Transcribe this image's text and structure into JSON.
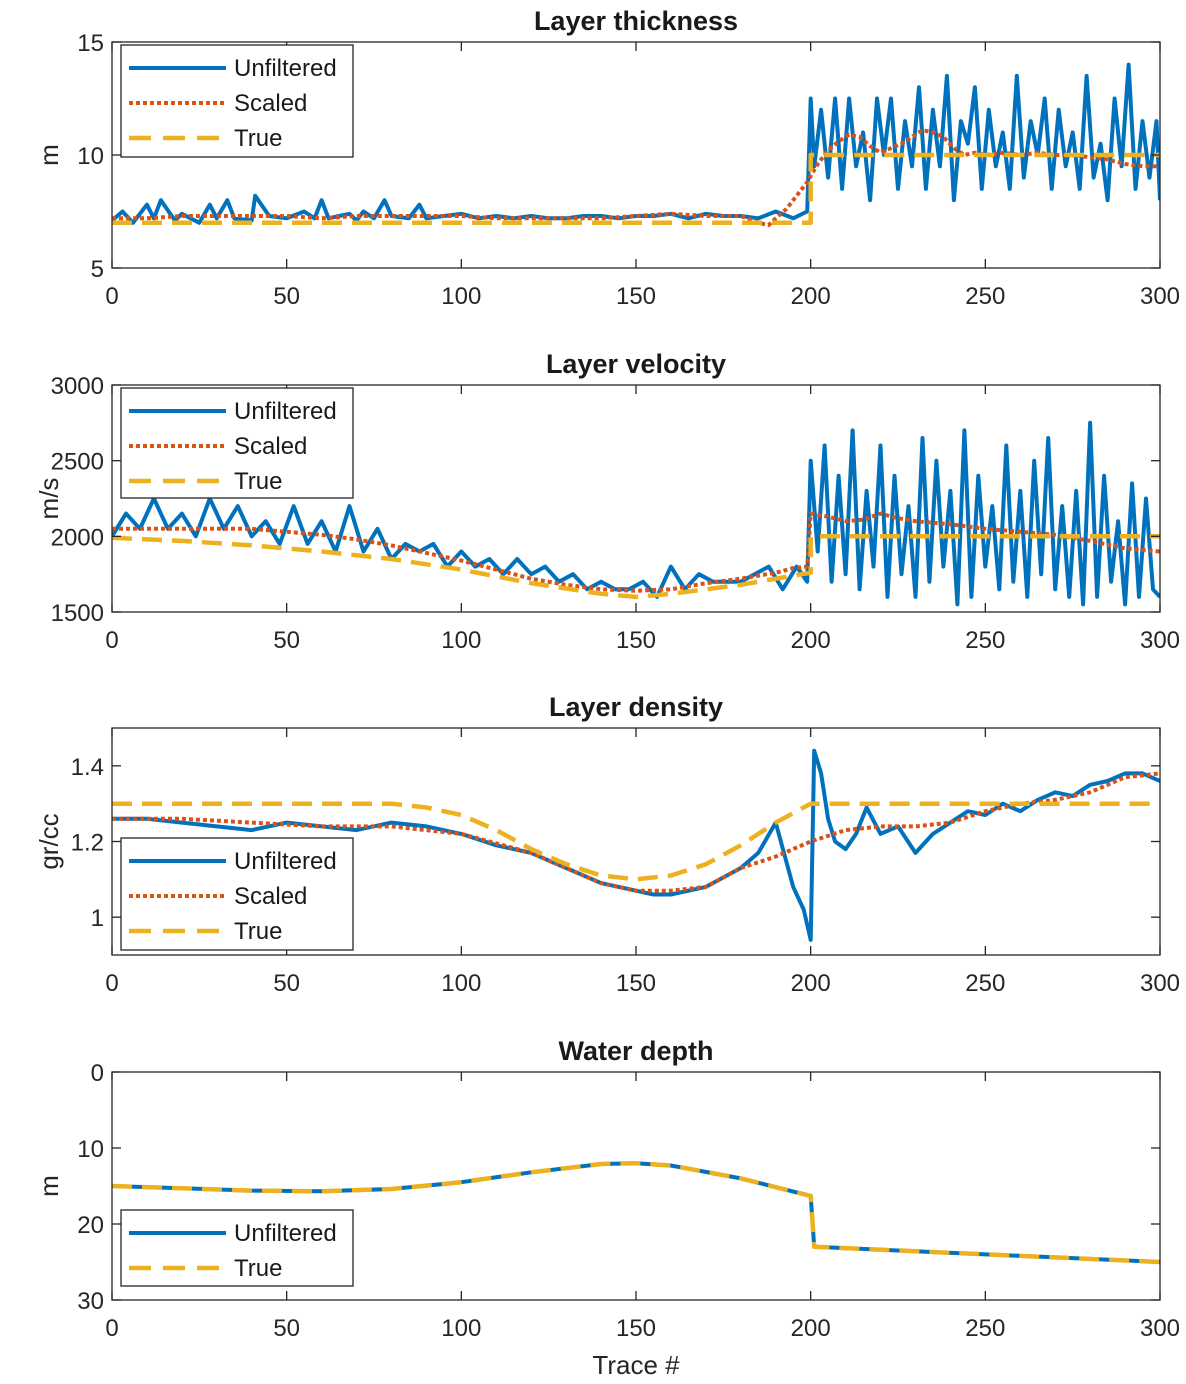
{
  "colors": {
    "unfiltered": "#0072BD",
    "scaled": "#D95319",
    "true": "#EDB120",
    "axis": "#262626",
    "background": "#ffffff"
  },
  "chart_data": [
    {
      "type": "line",
      "title": "Layer thickness",
      "ylabel": "m",
      "xlabel": "",
      "xlim": [
        0,
        300
      ],
      "ylim": [
        5,
        15
      ],
      "y_reversed": false,
      "xticks": [
        0,
        50,
        100,
        150,
        200,
        250,
        300
      ],
      "yticks": [
        5,
        10,
        15
      ],
      "legend_position": "top-left",
      "series": [
        {
          "name": "Unfiltered",
          "style": "solid",
          "x": [
            0,
            3,
            6,
            10,
            12,
            14,
            18,
            20,
            25,
            28,
            30,
            33,
            35,
            40,
            41,
            45,
            50,
            55,
            58,
            60,
            62,
            65,
            68,
            70,
            72,
            75,
            78,
            80,
            85,
            88,
            90,
            95,
            100,
            105,
            110,
            115,
            120,
            125,
            130,
            135,
            140,
            145,
            150,
            155,
            160,
            165,
            170,
            175,
            180,
            185,
            190,
            195,
            199,
            200,
            201,
            203,
            205,
            207,
            209,
            211,
            213,
            215,
            217,
            219,
            221,
            223,
            225,
            227,
            229,
            231,
            233,
            235,
            237,
            239,
            241,
            243,
            245,
            247,
            249,
            251,
            253,
            255,
            257,
            259,
            261,
            263,
            265,
            267,
            269,
            271,
            273,
            275,
            277,
            279,
            281,
            283,
            285,
            287,
            289,
            291,
            293,
            295,
            297,
            299,
            300
          ],
          "y": [
            7.1,
            7.5,
            7.0,
            7.8,
            7.2,
            8.0,
            7.1,
            7.4,
            7.0,
            7.8,
            7.2,
            8.0,
            7.2,
            7.1,
            8.2,
            7.3,
            7.2,
            7.5,
            7.2,
            8.0,
            7.2,
            7.3,
            7.4,
            7.1,
            7.5,
            7.2,
            8.0,
            7.3,
            7.2,
            7.8,
            7.2,
            7.3,
            7.4,
            7.2,
            7.3,
            7.2,
            7.3,
            7.2,
            7.2,
            7.3,
            7.3,
            7.2,
            7.3,
            7.3,
            7.4,
            7.2,
            7.4,
            7.3,
            7.3,
            7.2,
            7.5,
            7.2,
            7.5,
            12.5,
            9.5,
            12.0,
            9.0,
            12.5,
            8.5,
            12.5,
            9.5,
            11.0,
            8.0,
            12.5,
            10.0,
            12.5,
            8.5,
            11.5,
            9.5,
            13.0,
            8.5,
            12.0,
            9.5,
            13.5,
            8.0,
            11.5,
            10.5,
            13.0,
            8.5,
            12.0,
            9.5,
            11.0,
            8.5,
            13.5,
            9.0,
            11.5,
            10.0,
            12.5,
            8.5,
            12.0,
            9.5,
            11.0,
            8.5,
            13.5,
            9.0,
            10.5,
            8.0,
            12.5,
            9.5,
            14.0,
            8.5,
            11.5,
            9.0,
            11.5,
            8.0
          ]
        },
        {
          "name": "Scaled",
          "style": "dotted",
          "x": [
            0,
            10,
            20,
            30,
            40,
            50,
            60,
            70,
            80,
            90,
            100,
            110,
            120,
            130,
            140,
            150,
            160,
            170,
            180,
            185,
            188,
            190,
            193,
            196,
            199,
            202,
            205,
            208,
            211,
            214,
            217,
            220,
            223,
            226,
            229,
            232,
            235,
            238,
            241,
            244,
            247,
            250,
            255,
            260,
            265,
            270,
            275,
            280,
            285,
            290,
            295,
            300
          ],
          "y": [
            7.2,
            7.2,
            7.3,
            7.3,
            7.3,
            7.3,
            7.2,
            7.3,
            7.3,
            7.3,
            7.3,
            7.2,
            7.2,
            7.2,
            7.2,
            7.3,
            7.4,
            7.3,
            7.3,
            7.0,
            6.9,
            7.2,
            7.6,
            8.2,
            8.8,
            9.6,
            10.2,
            10.6,
            10.9,
            10.8,
            10.4,
            10.1,
            10.3,
            10.5,
            10.8,
            11.1,
            11.0,
            10.8,
            10.3,
            10.0,
            10.1,
            10.0,
            10.1,
            10.0,
            10.1,
            10.0,
            10.0,
            9.9,
            9.8,
            9.6,
            9.5,
            9.5
          ]
        },
        {
          "name": "True",
          "style": "dashed",
          "x": [
            0,
            200,
            200,
            300
          ],
          "y": [
            7,
            7,
            10,
            10
          ]
        }
      ]
    },
    {
      "type": "line",
      "title": "Layer velocity",
      "ylabel": "m/s",
      "xlabel": "",
      "xlim": [
        0,
        300
      ],
      "ylim": [
        1500,
        3000
      ],
      "y_reversed": false,
      "xticks": [
        0,
        50,
        100,
        150,
        200,
        250,
        300
      ],
      "yticks": [
        1500,
        2000,
        2500,
        3000
      ],
      "legend_position": "top-left",
      "series": [
        {
          "name": "Unfiltered",
          "style": "solid",
          "x": [
            0,
            4,
            8,
            12,
            16,
            20,
            24,
            28,
            32,
            36,
            40,
            44,
            48,
            52,
            56,
            60,
            64,
            68,
            72,
            76,
            80,
            84,
            88,
            92,
            96,
            100,
            104,
            108,
            112,
            116,
            120,
            124,
            128,
            132,
            136,
            140,
            144,
            148,
            152,
            156,
            160,
            164,
            168,
            172,
            176,
            180,
            184,
            188,
            192,
            196,
            199,
            200,
            202,
            204,
            206,
            208,
            210,
            212,
            214,
            216,
            218,
            220,
            222,
            224,
            226,
            228,
            230,
            232,
            234,
            236,
            238,
            240,
            242,
            244,
            246,
            248,
            250,
            252,
            254,
            256,
            258,
            260,
            262,
            264,
            266,
            268,
            270,
            272,
            274,
            276,
            278,
            280,
            282,
            284,
            286,
            288,
            290,
            292,
            294,
            296,
            298,
            300
          ],
          "y": [
            2000,
            2150,
            2050,
            2250,
            2050,
            2150,
            2000,
            2250,
            2050,
            2200,
            2000,
            2100,
            1950,
            2200,
            1950,
            2100,
            1900,
            2200,
            1900,
            2050,
            1850,
            1950,
            1900,
            1950,
            1800,
            1900,
            1800,
            1850,
            1750,
            1850,
            1750,
            1800,
            1700,
            1750,
            1650,
            1700,
            1650,
            1650,
            1700,
            1600,
            1800,
            1650,
            1750,
            1700,
            1700,
            1700,
            1750,
            1800,
            1650,
            1800,
            1700,
            2500,
            1900,
            2600,
            1700,
            2400,
            1750,
            2700,
            1650,
            2300,
            1800,
            2600,
            1600,
            2400,
            1750,
            2200,
            1600,
            2650,
            1700,
            2500,
            1800,
            2300,
            1550,
            2700,
            1600,
            2400,
            1800,
            2200,
            1650,
            2600,
            1700,
            2300,
            1600,
            2500,
            1750,
            2650,
            1650,
            2200,
            1600,
            2300,
            1550,
            2750,
            1600,
            2400,
            1700,
            2100,
            1550,
            2350,
            1600,
            2250,
            1650,
            1600
          ]
        },
        {
          "name": "Scaled",
          "style": "dotted",
          "x": [
            0,
            10,
            20,
            30,
            40,
            50,
            60,
            70,
            80,
            90,
            100,
            110,
            120,
            130,
            140,
            150,
            160,
            170,
            180,
            190,
            195,
            199,
            200,
            205,
            210,
            215,
            220,
            225,
            230,
            240,
            250,
            260,
            270,
            280,
            290,
            300
          ],
          "y": [
            2050,
            2050,
            2050,
            2050,
            2050,
            2030,
            2010,
            1980,
            1940,
            1890,
            1840,
            1780,
            1720,
            1680,
            1650,
            1640,
            1650,
            1690,
            1720,
            1760,
            1790,
            1800,
            2150,
            2130,
            2100,
            2110,
            2150,
            2120,
            2100,
            2080,
            2050,
            2030,
            2010,
            1970,
            1920,
            1900
          ]
        },
        {
          "name": "True",
          "style": "dashed",
          "x": [
            0,
            20,
            40,
            60,
            80,
            100,
            120,
            140,
            150,
            160,
            180,
            190,
            200,
            200,
            300
          ],
          "y": [
            1990,
            1970,
            1940,
            1900,
            1850,
            1780,
            1690,
            1620,
            1600,
            1620,
            1680,
            1720,
            1760,
            2000,
            2000
          ]
        }
      ]
    },
    {
      "type": "line",
      "title": "Layer density",
      "ylabel": "gr/cc",
      "xlabel": "",
      "xlim": [
        0,
        300
      ],
      "ylim": [
        0.9,
        1.5
      ],
      "y_reversed": false,
      "xticks": [
        0,
        50,
        100,
        150,
        200,
        250,
        300
      ],
      "yticks": [
        1,
        1.2,
        1.4
      ],
      "legend_position": "bottom-left",
      "series": [
        {
          "name": "Unfiltered",
          "style": "solid",
          "x": [
            0,
            10,
            20,
            30,
            40,
            50,
            60,
            70,
            80,
            90,
            100,
            110,
            120,
            130,
            140,
            150,
            155,
            160,
            170,
            180,
            185,
            190,
            195,
            198,
            200,
            201,
            203,
            205,
            207,
            210,
            213,
            216,
            220,
            225,
            230,
            235,
            240,
            245,
            250,
            255,
            260,
            265,
            270,
            275,
            280,
            285,
            290,
            295,
            300
          ],
          "y": [
            1.26,
            1.26,
            1.25,
            1.24,
            1.23,
            1.25,
            1.24,
            1.23,
            1.25,
            1.24,
            1.22,
            1.19,
            1.17,
            1.13,
            1.09,
            1.07,
            1.06,
            1.06,
            1.08,
            1.13,
            1.17,
            1.25,
            1.08,
            1.02,
            0.94,
            1.44,
            1.38,
            1.26,
            1.2,
            1.18,
            1.22,
            1.29,
            1.22,
            1.24,
            1.17,
            1.22,
            1.25,
            1.28,
            1.27,
            1.3,
            1.28,
            1.31,
            1.33,
            1.32,
            1.35,
            1.36,
            1.38,
            1.38,
            1.36
          ]
        },
        {
          "name": "Scaled",
          "style": "dotted",
          "x": [
            0,
            20,
            40,
            60,
            80,
            100,
            120,
            140,
            150,
            160,
            170,
            180,
            190,
            200,
            210,
            220,
            230,
            240,
            250,
            260,
            270,
            280,
            290,
            300
          ],
          "y": [
            1.26,
            1.26,
            1.25,
            1.24,
            1.24,
            1.22,
            1.17,
            1.09,
            1.07,
            1.07,
            1.08,
            1.13,
            1.16,
            1.2,
            1.23,
            1.24,
            1.24,
            1.25,
            1.28,
            1.3,
            1.31,
            1.33,
            1.37,
            1.38
          ]
        },
        {
          "name": "True",
          "style": "dashed",
          "x": [
            0,
            80,
            90,
            100,
            110,
            120,
            130,
            140,
            150,
            160,
            170,
            180,
            190,
            200,
            300
          ],
          "y": [
            1.3,
            1.3,
            1.29,
            1.27,
            1.23,
            1.18,
            1.14,
            1.11,
            1.1,
            1.11,
            1.14,
            1.19,
            1.25,
            1.3,
            1.3
          ]
        }
      ]
    },
    {
      "type": "line",
      "title": "Water depth",
      "ylabel": "m",
      "xlabel": "Trace #",
      "xlim": [
        0,
        300
      ],
      "ylim": [
        0,
        30
      ],
      "y_reversed": true,
      "xticks": [
        0,
        50,
        100,
        150,
        200,
        250,
        300
      ],
      "yticks": [
        0,
        10,
        20,
        30
      ],
      "legend_position": "bottom-left",
      "series": [
        {
          "name": "Unfiltered",
          "style": "solid",
          "x": [
            0,
            20,
            40,
            60,
            80,
            100,
            120,
            140,
            150,
            160,
            180,
            200,
            201,
            300
          ],
          "y": [
            15.0,
            15.3,
            15.6,
            15.7,
            15.4,
            14.5,
            13.2,
            12.1,
            12.0,
            12.3,
            14.0,
            16.3,
            23.0,
            25.0
          ]
        },
        {
          "name": "True",
          "style": "dashed",
          "x": [
            0,
            20,
            40,
            60,
            80,
            100,
            120,
            140,
            150,
            160,
            180,
            200,
            201,
            300
          ],
          "y": [
            15.0,
            15.3,
            15.6,
            15.7,
            15.4,
            14.5,
            13.2,
            12.1,
            12.0,
            12.3,
            14.0,
            16.3,
            23.0,
            25.0
          ]
        }
      ]
    }
  ]
}
